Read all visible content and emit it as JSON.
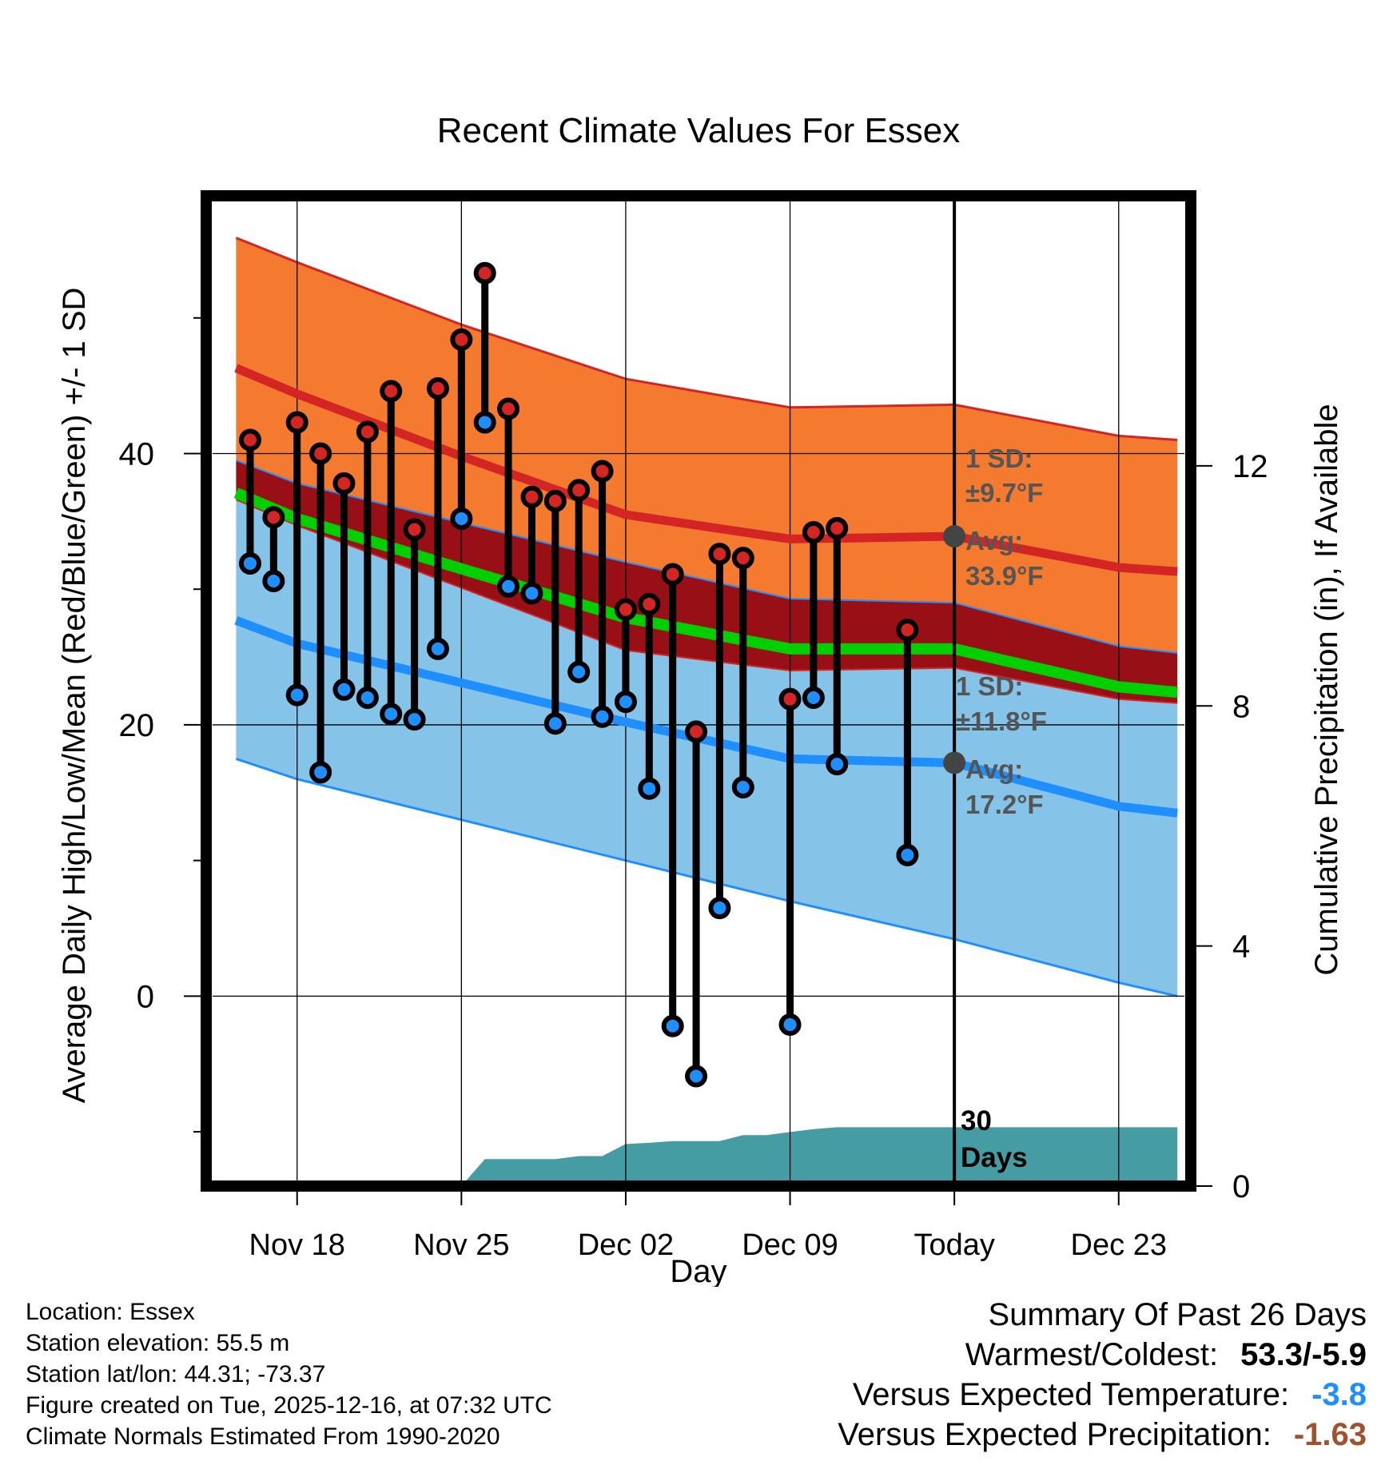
{
  "title": "Recent Climate Values For Essex",
  "chart_data": {
    "type": "line",
    "title": "Recent Climate Values For Essex",
    "xlabel": "Day",
    "ylabel": "Average Daily High/Low/Mean (Red/Blue/Green) +/- 1 SD",
    "y2label": "Cumulative Precipitation (in), If Available",
    "xlim": [
      -3.6,
      37.8
    ],
    "ylim": [
      -14,
      59
    ],
    "y2lim": [
      0,
      16.5
    ],
    "x_ticks": [
      {
        "x": 0,
        "label": "Nov 18"
      },
      {
        "x": 7,
        "label": "Nov 25"
      },
      {
        "x": 14,
        "label": "Dec 02"
      },
      {
        "x": 21,
        "label": "Dec 09"
      },
      {
        "x": 28,
        "label": "Today"
      },
      {
        "x": 35,
        "label": "Dec 23"
      }
    ],
    "y_ticks": [
      0,
      20,
      40
    ],
    "y2_ticks": [
      0,
      4,
      8,
      12
    ],
    "normals": {
      "x": [
        -2.6,
        0,
        7,
        14,
        21,
        28,
        35,
        37.5
      ],
      "high_avg": [
        46.3,
        44.4,
        39.8,
        35.5,
        33.7,
        33.9,
        31.6,
        31.3
      ],
      "high_plus_sd": [
        55.9,
        54.1,
        49.5,
        45.5,
        43.4,
        43.6,
        41.3,
        41.0
      ],
      "high_minus_sd": [
        36.6,
        34.7,
        30.1,
        25.5,
        24.0,
        24.2,
        21.9,
        21.6
      ],
      "low_avg": [
        27.7,
        26.0,
        23.1,
        20.2,
        17.5,
        17.2,
        14.0,
        13.5
      ],
      "low_plus_sd": [
        39.5,
        37.8,
        34.9,
        32.0,
        29.3,
        29.0,
        25.8,
        25.3
      ],
      "low_minus_sd": [
        17.5,
        16.0,
        13.0,
        10.0,
        7.0,
        4.2,
        1.0,
        0.0
      ],
      "mean_avg": [
        37.1,
        35.2,
        31.5,
        27.9,
        25.6,
        25.6,
        22.8,
        22.4
      ]
    },
    "observed": {
      "x": [
        -2,
        -1,
        0,
        1,
        2,
        3,
        4,
        5,
        6,
        7,
        8,
        9,
        10,
        11,
        12,
        13,
        14,
        15,
        16,
        17,
        18,
        19,
        20,
        21,
        22,
        23,
        26
      ],
      "high": [
        41.0,
        35.3,
        42.3,
        40.0,
        37.8,
        41.6,
        44.6,
        34.4,
        44.8,
        48.4,
        53.3,
        43.3,
        36.8,
        36.5,
        37.3,
        38.7,
        28.5,
        28.9,
        31.1,
        19.5,
        32.6,
        32.3,
        null,
        21.9,
        34.2,
        34.5,
        27.0
      ],
      "low": [
        31.9,
        30.6,
        22.2,
        16.5,
        22.6,
        22.0,
        20.8,
        20.4,
        25.6,
        35.2,
        42.3,
        30.2,
        29.7,
        20.1,
        23.9,
        20.6,
        21.7,
        15.3,
        -2.2,
        -5.9,
        6.5,
        15.4,
        null,
        -2.1,
        22.0,
        17.1,
        10.4
      ]
    },
    "precip_cumulative": {
      "x": [
        -2.6,
        7,
        8,
        11,
        12,
        13,
        14,
        15,
        16,
        17,
        18,
        19,
        20,
        21,
        22,
        23,
        26,
        28,
        37.5
      ],
      "y": [
        0,
        0,
        0.45,
        0.45,
        0.5,
        0.5,
        0.7,
        0.72,
        0.75,
        0.75,
        0.75,
        0.85,
        0.85,
        0.9,
        0.95,
        0.98,
        0.98,
        0.98,
        0.98
      ]
    },
    "annotations": {
      "high": {
        "sd_label": "1 SD:",
        "sd_value": "±9.7°F",
        "avg_label": "Avg:",
        "avg_value": "33.9°F",
        "avg": 33.9
      },
      "low": {
        "sd_label": "1 SD:",
        "sd_value": "±11.8°F",
        "avg_label": "Avg:",
        "avg_value": "17.2°F",
        "avg": 17.2
      },
      "days": "30 Days",
      "today_x": 28
    },
    "colors": {
      "high_band": "#f47a2f",
      "high_line": "#d42525",
      "low_band": "#85c3e8",
      "low_line": "#1f8fff",
      "mean_line": "#00d000",
      "overlap": "#980f15",
      "precip": "#469ca3",
      "high_dot": "#d42525",
      "low_dot": "#1f8fff",
      "annotation": "#555555"
    }
  },
  "footer": {
    "location": "Location: Essex",
    "elevation": "Station elevation: 55.5 m",
    "latlon": "Station lat/lon: 44.31; -73.37",
    "created": "Figure created on Tue, 2025-12-16, at 07:32 UTC",
    "normals": "Climate Normals Estimated From 1990-2020"
  },
  "summary": {
    "heading": "Summary Of Past 26 Days",
    "warm_cold_label": "Warmest/Coldest:",
    "warm_cold_value": "53.3/-5.9",
    "temp_label": "Versus Expected Temperature:",
    "temp_value": "-3.8",
    "temp_color": "#1f8fff",
    "precip_label": "Versus Expected Precipitation:",
    "precip_value": "-1.63",
    "precip_color": "#a0522d"
  }
}
